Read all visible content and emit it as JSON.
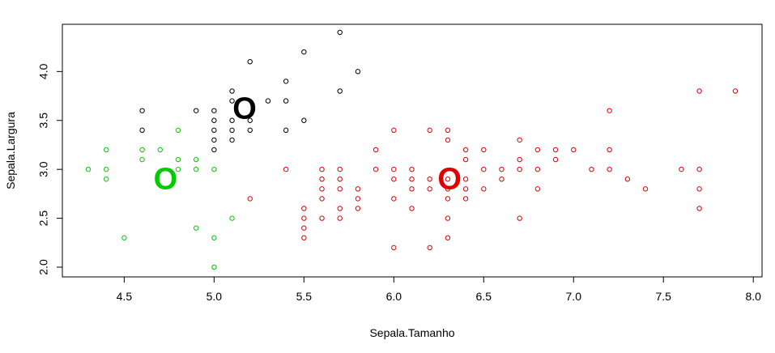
{
  "chart_data": {
    "type": "scatter",
    "title": "",
    "xlabel": "Sepala.Tamanho",
    "ylabel": "Sepala.Largura",
    "xlim": [
      4.3,
      7.9
    ],
    "ylim": [
      2.0,
      4.4
    ],
    "xticks": [
      "4.5",
      "5.0",
      "5.5",
      "6.0",
      "6.5",
      "7.0",
      "7.5",
      "8.0"
    ],
    "yticks": [
      "2.0",
      "2.5",
      "3.0",
      "3.5",
      "4.0"
    ],
    "grid": false,
    "legend": "none",
    "series": [
      {
        "color": "#000000",
        "points": [
          [
            5.7,
            4.4
          ],
          [
            5.5,
            4.2
          ],
          [
            5.2,
            4.1
          ],
          [
            5.8,
            4.0
          ],
          [
            5.4,
            3.9
          ],
          [
            5.7,
            3.8
          ],
          [
            5.1,
            3.8
          ],
          [
            5.1,
            3.7
          ],
          [
            5.3,
            3.7
          ],
          [
            5.4,
            3.7
          ],
          [
            4.6,
            3.6
          ],
          [
            4.9,
            3.6
          ],
          [
            5.0,
            3.6
          ],
          [
            5.0,
            3.5
          ],
          [
            5.1,
            3.5
          ],
          [
            5.2,
            3.5
          ],
          [
            5.5,
            3.5
          ],
          [
            4.6,
            3.4
          ],
          [
            5.0,
            3.4
          ],
          [
            5.1,
            3.4
          ],
          [
            5.2,
            3.4
          ],
          [
            5.4,
            3.4
          ],
          [
            5.0,
            3.3
          ],
          [
            5.1,
            3.3
          ],
          [
            5.0,
            3.2
          ]
        ]
      },
      {
        "color": "#00cc00",
        "points": [
          [
            4.8,
            3.4
          ],
          [
            4.4,
            3.2
          ],
          [
            4.6,
            3.2
          ],
          [
            4.7,
            3.2
          ],
          [
            4.6,
            3.1
          ],
          [
            4.8,
            3.1
          ],
          [
            4.9,
            3.1
          ],
          [
            4.3,
            3.0
          ],
          [
            4.4,
            3.0
          ],
          [
            4.8,
            3.0
          ],
          [
            4.9,
            3.0
          ],
          [
            5.0,
            3.0
          ],
          [
            4.4,
            2.9
          ],
          [
            5.1,
            2.5
          ],
          [
            4.9,
            2.4
          ],
          [
            4.5,
            2.3
          ],
          [
            5.0,
            2.3
          ],
          [
            5.0,
            2.0
          ]
        ]
      },
      {
        "color": "#dd0000",
        "points": [
          [
            7.7,
            3.8
          ],
          [
            7.9,
            3.8
          ],
          [
            7.2,
            3.6
          ],
          [
            6.0,
            3.4
          ],
          [
            6.2,
            3.4
          ],
          [
            6.3,
            3.4
          ],
          [
            6.3,
            3.3
          ],
          [
            6.7,
            3.3
          ],
          [
            5.9,
            3.2
          ],
          [
            6.4,
            3.2
          ],
          [
            6.5,
            3.2
          ],
          [
            6.8,
            3.2
          ],
          [
            6.9,
            3.2
          ],
          [
            7.0,
            3.2
          ],
          [
            7.2,
            3.2
          ],
          [
            6.4,
            3.1
          ],
          [
            6.7,
            3.1
          ],
          [
            6.9,
            3.1
          ],
          [
            5.4,
            3.0
          ],
          [
            5.6,
            3.0
          ],
          [
            5.7,
            3.0
          ],
          [
            5.9,
            3.0
          ],
          [
            6.0,
            3.0
          ],
          [
            6.1,
            3.0
          ],
          [
            6.5,
            3.0
          ],
          [
            6.6,
            3.0
          ],
          [
            6.7,
            3.0
          ],
          [
            6.8,
            3.0
          ],
          [
            7.1,
            3.0
          ],
          [
            7.2,
            3.0
          ],
          [
            7.6,
            3.0
          ],
          [
            7.7,
            3.0
          ],
          [
            5.6,
            2.9
          ],
          [
            5.7,
            2.9
          ],
          [
            6.0,
            2.9
          ],
          [
            6.1,
            2.9
          ],
          [
            6.2,
            2.9
          ],
          [
            6.3,
            2.9
          ],
          [
            6.4,
            2.9
          ],
          [
            6.6,
            2.9
          ],
          [
            7.3,
            2.9
          ],
          [
            5.6,
            2.8
          ],
          [
            5.7,
            2.8
          ],
          [
            5.8,
            2.8
          ],
          [
            6.1,
            2.8
          ],
          [
            6.2,
            2.8
          ],
          [
            6.3,
            2.8
          ],
          [
            6.4,
            2.8
          ],
          [
            6.5,
            2.8
          ],
          [
            6.8,
            2.8
          ],
          [
            7.4,
            2.8
          ],
          [
            7.7,
            2.8
          ],
          [
            5.2,
            2.7
          ],
          [
            5.6,
            2.7
          ],
          [
            5.8,
            2.7
          ],
          [
            6.0,
            2.7
          ],
          [
            6.3,
            2.7
          ],
          [
            6.4,
            2.7
          ],
          [
            5.5,
            2.6
          ],
          [
            5.7,
            2.6
          ],
          [
            5.8,
            2.6
          ],
          [
            6.1,
            2.6
          ],
          [
            7.7,
            2.6
          ],
          [
            5.5,
            2.5
          ],
          [
            5.6,
            2.5
          ],
          [
            5.7,
            2.5
          ],
          [
            6.3,
            2.5
          ],
          [
            6.7,
            2.5
          ],
          [
            5.5,
            2.4
          ],
          [
            5.5,
            2.3
          ],
          [
            6.3,
            2.3
          ],
          [
            6.0,
            2.2
          ],
          [
            6.2,
            2.2
          ]
        ]
      }
    ],
    "centers": [
      {
        "label": "O",
        "x": 5.17,
        "y": 3.6,
        "color": "#000000"
      },
      {
        "label": "O",
        "x": 4.73,
        "y": 2.88,
        "color": "#00cc00"
      },
      {
        "label": "O",
        "x": 6.31,
        "y": 2.88,
        "color": "#dd0000"
      }
    ]
  }
}
